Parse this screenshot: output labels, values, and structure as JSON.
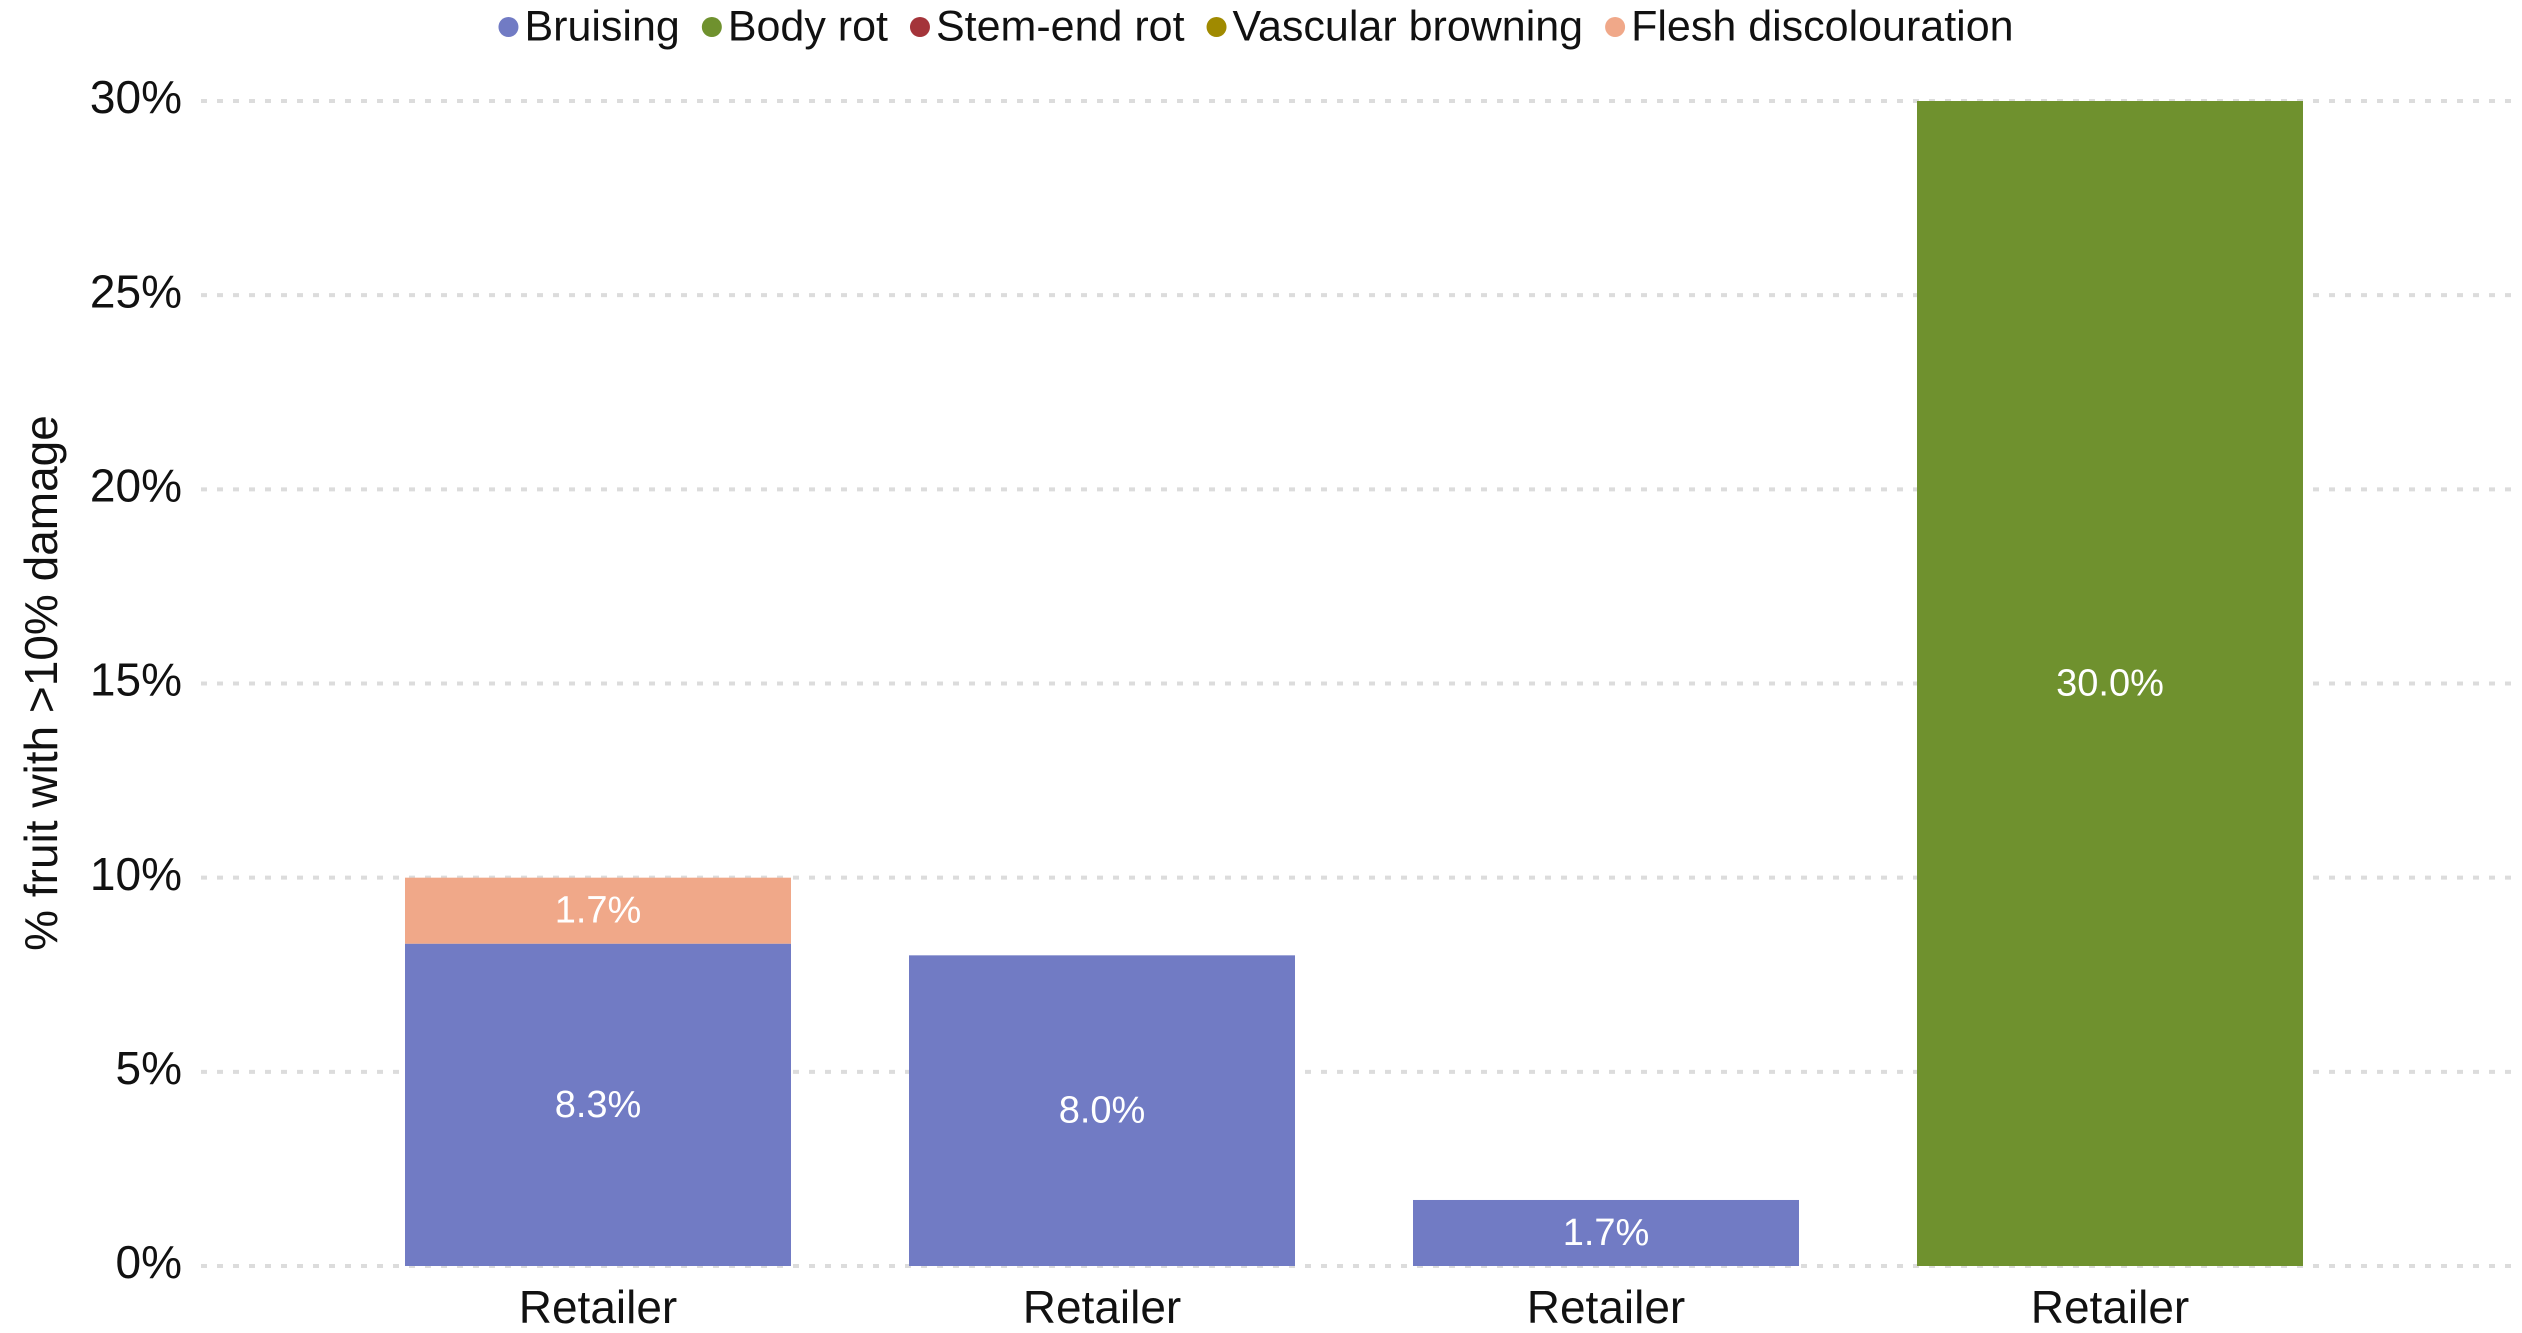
{
  "chart_data": {
    "type": "bar",
    "stacked": true,
    "ylabel": "% fruit with >10% damage",
    "categories": [
      "Retailer",
      "Retailer",
      "Retailer",
      "Retailer"
    ],
    "series": [
      {
        "name": "Bruising",
        "color": "#717bc4",
        "values": [
          8.3,
          8.0,
          1.7,
          null
        ],
        "value_labels": [
          "8.3%",
          "8.0%",
          "1.7%",
          null
        ]
      },
      {
        "name": "Body rot",
        "color": "#6f912e",
        "values": [
          null,
          null,
          null,
          30.0
        ],
        "value_labels": [
          null,
          null,
          null,
          "30.0%"
        ]
      },
      {
        "name": "Stem-end rot",
        "color": "#a4343a",
        "values": [
          null,
          null,
          null,
          null
        ]
      },
      {
        "name": "Vascular browning",
        "color": "#a08a00",
        "values": [
          null,
          null,
          null,
          null
        ]
      },
      {
        "name": "Flesh discolouration",
        "color": "#f0a889",
        "values": [
          1.7,
          null,
          null,
          null
        ],
        "value_labels": [
          "1.7%",
          null,
          null,
          null
        ]
      }
    ],
    "ylim": [
      0,
      30
    ],
    "yticks": [
      {
        "value": 0,
        "label": "0%"
      },
      {
        "value": 5,
        "label": "5%"
      },
      {
        "value": 10,
        "label": "10%"
      },
      {
        "value": 15,
        "label": "15%"
      },
      {
        "value": 20,
        "label": "20%"
      },
      {
        "value": 25,
        "label": "25%"
      },
      {
        "value": 30,
        "label": "30%"
      }
    ],
    "grid": true,
    "legend": "top"
  }
}
